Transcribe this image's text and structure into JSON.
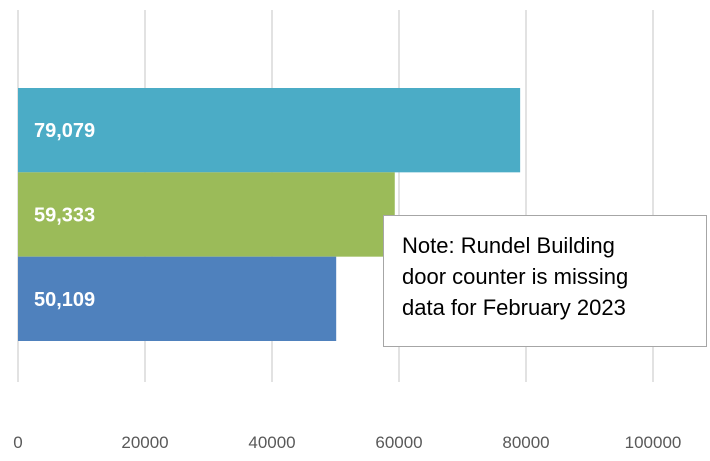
{
  "chart_data": {
    "type": "bar",
    "orientation": "horizontal",
    "categories": [
      "",
      "",
      ""
    ],
    "values": [
      79079,
      59333,
      50109
    ],
    "data_labels": [
      "79,079",
      "59,333",
      "50,109"
    ],
    "colors": [
      "#4bacc6",
      "#9bbb59",
      "#4f81bd"
    ],
    "xlim": [
      0,
      100000
    ],
    "x_ticks": [
      "0",
      "20000",
      "40000",
      "60000",
      "80000",
      "100000"
    ],
    "grid": "vertical",
    "legend": "none",
    "title": "",
    "xlabel": "",
    "ylabel": ""
  },
  "note": {
    "text": "Note: Rundel Building\ndoor counter is missing\ndata for February 2023"
  }
}
